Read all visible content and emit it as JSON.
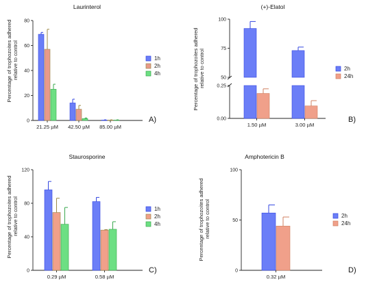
{
  "chart_data": [
    {
      "type": "bar",
      "title": "Laurinterol",
      "panel_label": "A)",
      "ylabel": "Percentage of trophozoites adhered relative to control",
      "categories": [
        "21.25 µM",
        "42.50 µM",
        "85.00 µM"
      ],
      "ylim": [
        0,
        80
      ],
      "yticks": [
        "0",
        "20",
        "40",
        "60",
        "80"
      ],
      "series": [
        {
          "name": "1h",
          "values": [
            69,
            14,
            0.3
          ],
          "errors": [
            1.5,
            3,
            0.2
          ],
          "fill": "#6b7ef7",
          "edge": "#3346e0",
          "err_color": "#3346e0"
        },
        {
          "name": "2h",
          "values": [
            57,
            9,
            0.3
          ],
          "errors": [
            16,
            3,
            0.2
          ],
          "fill": "#e89a8a",
          "edge": "#9c8a4a",
          "err_color": "#9c8a4a"
        },
        {
          "name": "4h",
          "values": [
            25,
            1.5,
            0.3
          ],
          "errors": [
            4,
            0.5,
            0.2
          ],
          "fill": "#6ddf83",
          "edge": "#3aa84e",
          "err_color": "#3aa84e"
        }
      ],
      "legend_position": "right"
    },
    {
      "type": "bar",
      "title": "(+)-Elatol",
      "panel_label": "B)",
      "ylabel": "Percentage of trophozoites adhered relative to control",
      "categories": [
        "1.50 µM",
        "3.00 µM"
      ],
      "ylim_lower": [
        0,
        0.25
      ],
      "ylim_upper": [
        50,
        100
      ],
      "yticks_lower": [
        "0.00",
        "0.25"
      ],
      "yticks_upper": [
        "50",
        "75",
        "100"
      ],
      "y_axis_break": true,
      "series": [
        {
          "name": "2h",
          "values": [
            92,
            73
          ],
          "errors": [
            6,
            3
          ],
          "fill": "#6b7ef7",
          "edge": "#3346e0",
          "err_color": "#3346e0"
        },
        {
          "name": "24h",
          "values": [
            0.19,
            0.095
          ],
          "errors": [
            0.035,
            0.04
          ],
          "fill": "#f0a08a",
          "edge": "#d08060",
          "err_color": "#d08060"
        }
      ],
      "legend_position": "right"
    },
    {
      "type": "bar",
      "title": "Staurosporine",
      "panel_label": "C)",
      "ylabel": "Percentage of trophozoites adhered relative to control",
      "categories": [
        "0.29 µM",
        "0.58 µM"
      ],
      "ylim": [
        0,
        120
      ],
      "yticks": [
        "0",
        "40",
        "80",
        "120"
      ],
      "series": [
        {
          "name": "1h",
          "values": [
            96,
            82
          ],
          "errors": [
            10,
            5
          ],
          "fill": "#6b7ef7",
          "edge": "#3346e0",
          "err_color": "#3346e0"
        },
        {
          "name": "2h",
          "values": [
            69,
            48
          ],
          "errors": [
            17,
            0.5
          ],
          "fill": "#f0a08a",
          "edge": "#9c8a4a",
          "err_color": "#9c8a4a"
        },
        {
          "name": "4h",
          "values": [
            55,
            49
          ],
          "errors": [
            20,
            9
          ],
          "fill": "#6ddf83",
          "edge": "#3aa84e",
          "err_color": "#3aa84e"
        }
      ],
      "legend_position": "right"
    },
    {
      "type": "bar",
      "title": "Amphotericin B",
      "panel_label": "D)",
      "ylabel": "Percentage of trophozoites adhered relative to control",
      "categories": [
        "0.32 µM"
      ],
      "ylim": [
        0,
        100
      ],
      "yticks": [
        "0",
        "50",
        "100"
      ],
      "series": [
        {
          "name": "2h",
          "values": [
            57
          ],
          "errors": [
            8
          ],
          "fill": "#6b7ef7",
          "edge": "#3346e0",
          "err_color": "#3346e0"
        },
        {
          "name": "24h",
          "values": [
            44
          ],
          "errors": [
            9
          ],
          "fill": "#f0a08a",
          "edge": "#d08060",
          "err_color": "#d08060"
        }
      ],
      "legend_position": "right"
    }
  ]
}
